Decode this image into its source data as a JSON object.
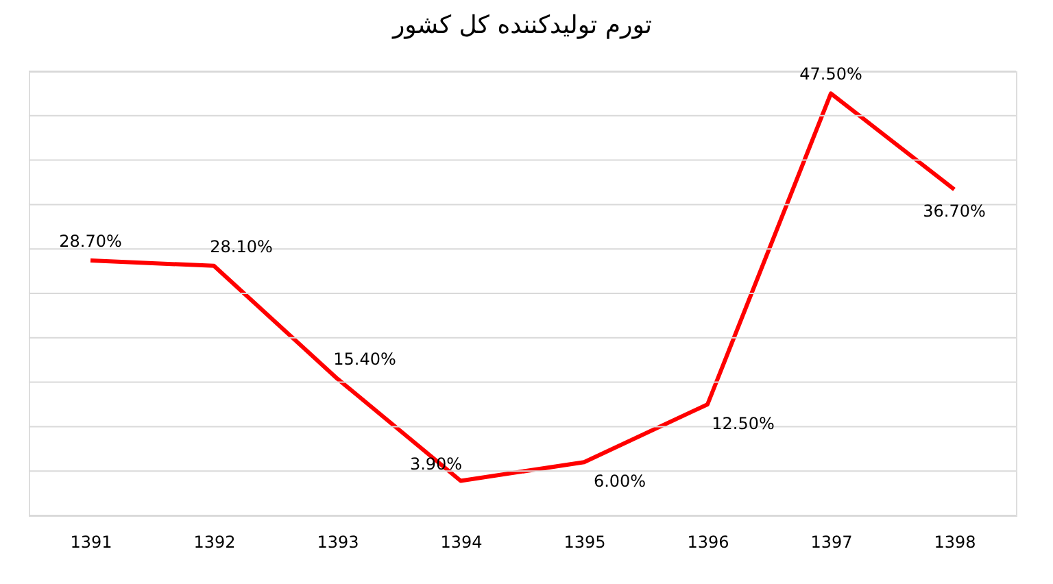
{
  "chart_data": {
    "type": "line",
    "title": "تورم تولیدکننده کل کشور",
    "categories": [
      "1391",
      "1392",
      "1393",
      "1394",
      "1395",
      "1396",
      "1397",
      "1398"
    ],
    "series": [
      {
        "color": "#ff0000",
        "values": [
          28.7,
          28.1,
          15.4,
          3.9,
          6.0,
          12.5,
          47.5,
          36.7
        ],
        "value_labels": [
          "28.70%",
          "28.10%",
          "15.40%",
          "3.90%",
          "6.00%",
          "12.50%",
          "47.50%",
          "36.70%"
        ]
      }
    ],
    "ylim": [
      0,
      50
    ],
    "yticks": [
      {
        "value": 0,
        "label": null
      },
      {
        "value": 5,
        "label": null
      },
      {
        "value": 10,
        "label": null
      },
      {
        "value": 15,
        "label": null
      },
      {
        "value": 20,
        "label": null
      },
      {
        "value": 25,
        "label": null
      },
      {
        "value": 30,
        "label": null
      },
      {
        "value": 35,
        "label": null
      },
      {
        "value": 40,
        "label": null
      },
      {
        "value": 45,
        "label": null
      },
      {
        "value": 50,
        "label": null
      }
    ],
    "grid": "y",
    "tick_labels": "x",
    "marker": "none",
    "line_style": "solid"
  }
}
